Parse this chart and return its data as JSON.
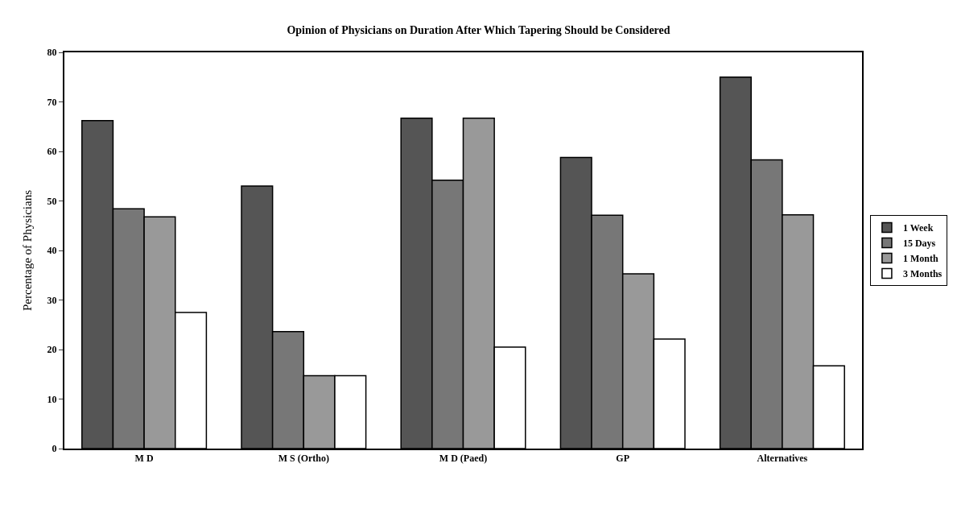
{
  "chart_data": {
    "type": "bar",
    "title": "Opinion of Physicians on Duration After Which Tapering Should be Considered",
    "ylabel": "Percentage of Physicians",
    "categories": [
      "M D",
      "M S (Ortho)",
      "M D (Paed)",
      "GP",
      "Alternatives"
    ],
    "series": [
      {
        "name": "1 Week",
        "color": "#555555",
        "values": [
          66.2,
          53,
          66.7,
          58.8,
          75
        ]
      },
      {
        "name": "15 Days",
        "color": "#777777",
        "values": [
          48.4,
          23.6,
          54.2,
          47.1,
          58.3
        ]
      },
      {
        "name": "1 Month",
        "color": "#999999",
        "values": [
          46.8,
          14.7,
          66.7,
          35.3,
          47.2
        ]
      },
      {
        "name": "3 Months",
        "color": "#ffffff",
        "values": [
          27.5,
          14.7,
          20.5,
          22.1,
          16.7
        ]
      }
    ],
    "ylim": [
      0,
      80
    ],
    "yticks": [
      0,
      10,
      20,
      30,
      40,
      50,
      60,
      70,
      80
    ],
    "grid": false,
    "legend": "right"
  }
}
